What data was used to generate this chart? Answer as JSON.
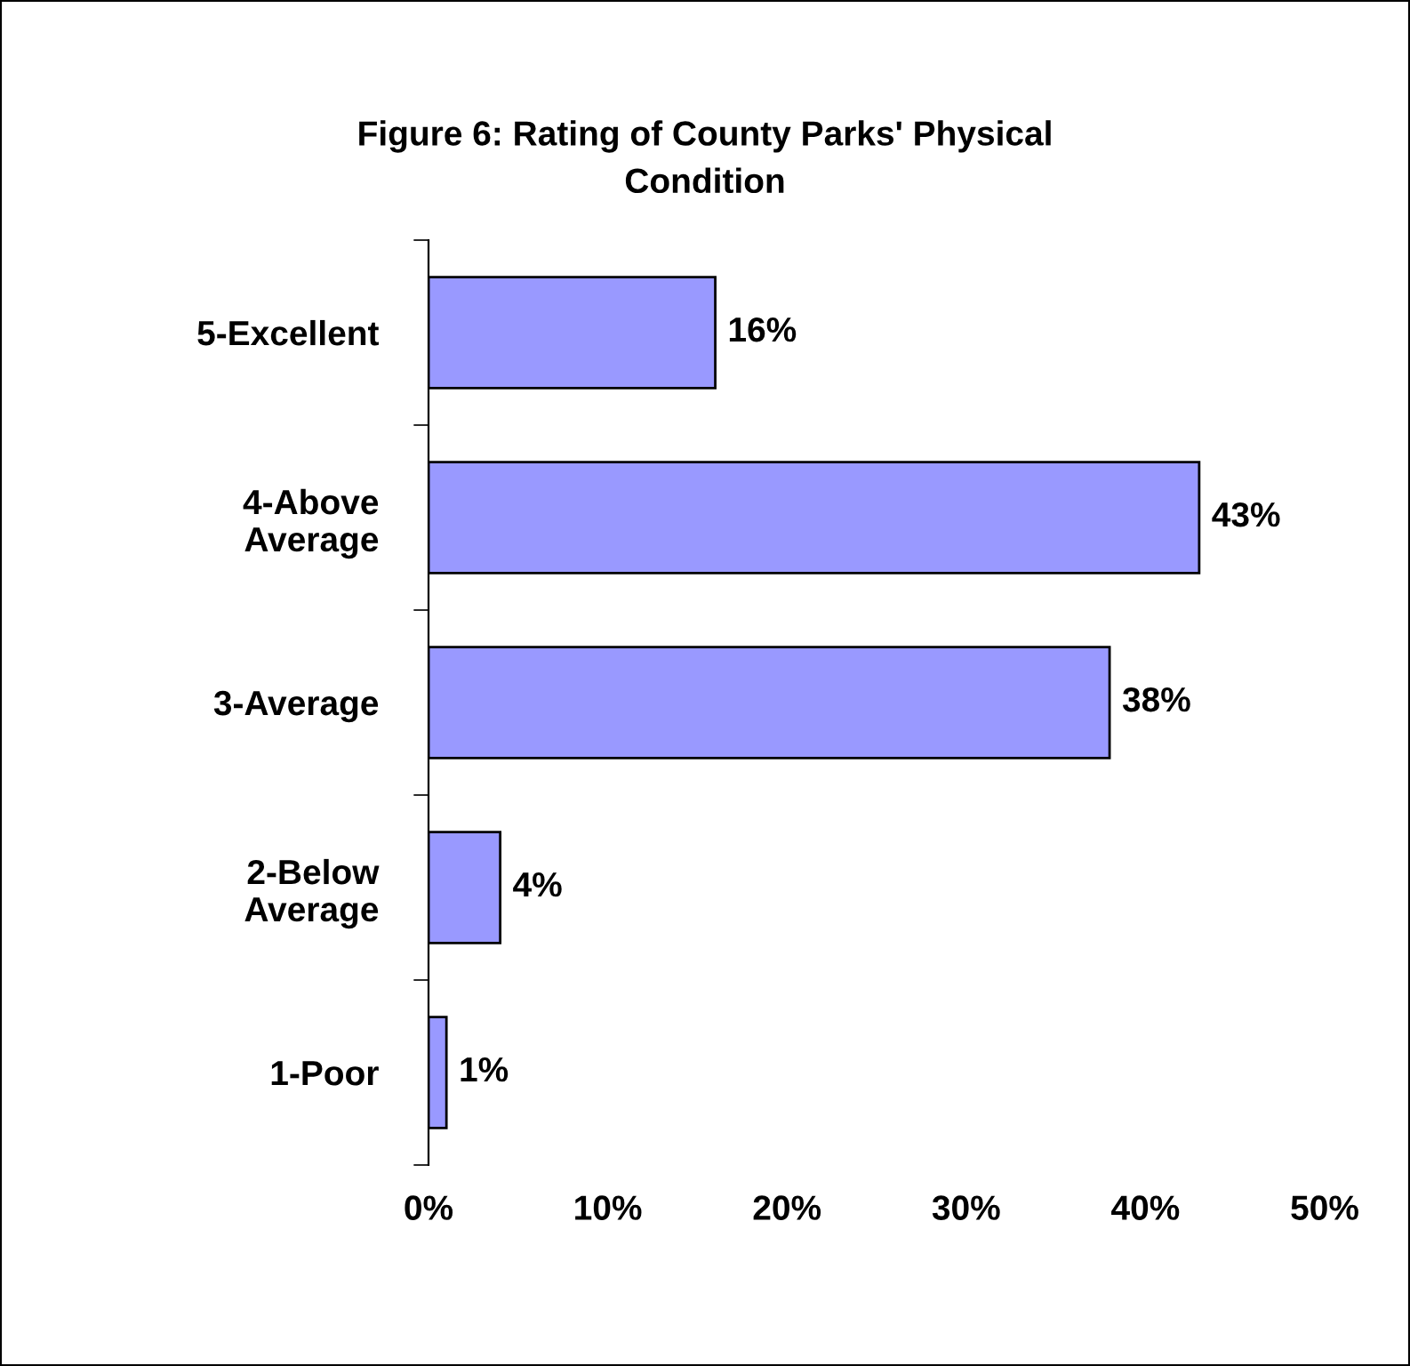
{
  "chart_data": {
    "type": "bar",
    "orientation": "horizontal",
    "title": "Figure 6: Rating of County Parks' Physical\nCondition",
    "categories": [
      "5-Excellent",
      "4-Above\nAverage",
      "3-Average",
      "2-Below\nAverage",
      "1-Poor"
    ],
    "values": [
      16,
      43,
      38,
      4,
      1
    ],
    "value_labels": [
      "16%",
      "43%",
      "38%",
      "4%",
      "1%"
    ],
    "color": "#9999ff",
    "xlim": [
      0,
      50
    ],
    "xticks": [
      {
        "value": 0,
        "label": "0%"
      },
      {
        "value": 10,
        "label": "10%"
      },
      {
        "value": 20,
        "label": "20%"
      },
      {
        "value": 30,
        "label": "30%"
      },
      {
        "value": 40,
        "label": "40%"
      },
      {
        "value": 50,
        "label": "50%"
      }
    ],
    "grid": false
  }
}
